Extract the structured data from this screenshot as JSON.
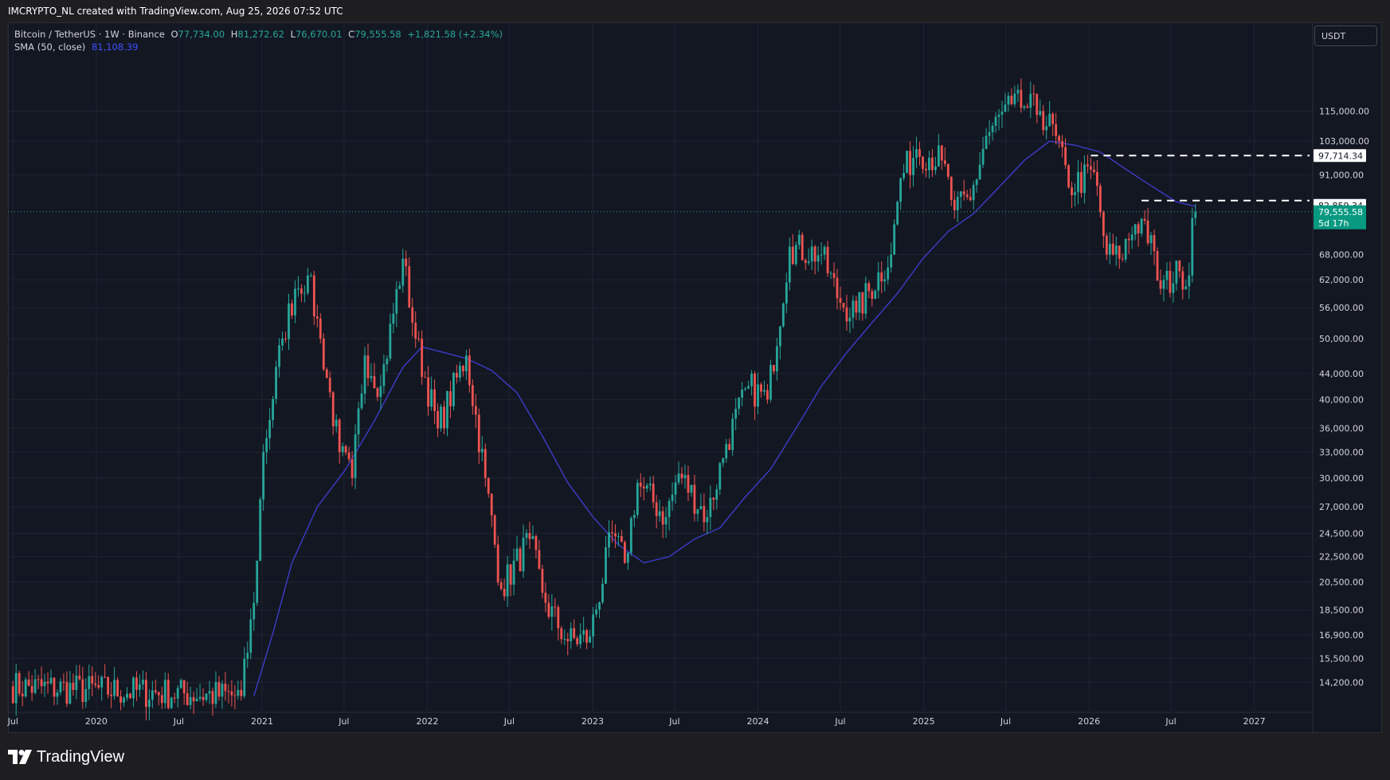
{
  "header": {
    "title": "IMCRYPTO_NL created with TradingView.com, Aug 25, 2026 07:52 UTC"
  },
  "legend": {
    "symbol": "Bitcoin / TetherUS · 1W · Binance",
    "open_label": "O",
    "open": "77,734.00",
    "high_label": "H",
    "high": "81,272.62",
    "low_label": "L",
    "low": "76,670.01",
    "close_label": "C",
    "close": "79,555.58",
    "change": "+1,821.58 (+2.34%)",
    "sma_label": "SMA (50, close)",
    "sma_value": "81,108.39"
  },
  "currency_button": "USDT",
  "footer": {
    "brand": "TradingView"
  },
  "colors": {
    "up": "#26a69a",
    "down": "#ef5350",
    "sma": "#3f3fd8",
    "background": "#131722",
    "grid": "#1f2433",
    "sma_label_bg": "#2962ff",
    "price_label_bg": "#089981"
  },
  "chart_data": {
    "type": "candlestick",
    "scale": "log",
    "ylim": [
      12800,
      145000
    ],
    "xlim": [
      "2019-06-20",
      "2027-05-10"
    ],
    "grid": true,
    "y_ticks": [
      {
        "label": "115,000.00",
        "value": 115000
      },
      {
        "label": "103,000.00",
        "value": 103000
      },
      {
        "label": "91,000.00",
        "value": 91000
      },
      {
        "label": "68,000.00",
        "value": 68000
      },
      {
        "label": "62,000.00",
        "value": 62000
      },
      {
        "label": "56,000.00",
        "value": 56000
      },
      {
        "label": "50,000.00",
        "value": 50000
      },
      {
        "label": "44,000.00",
        "value": 44000
      },
      {
        "label": "40,000.00",
        "value": 40000
      },
      {
        "label": "36,000.00",
        "value": 36000
      },
      {
        "label": "33,000.00",
        "value": 33000
      },
      {
        "label": "30,000.00",
        "value": 30000
      },
      {
        "label": "27,000.00",
        "value": 27000
      },
      {
        "label": "24,500.00",
        "value": 24500
      },
      {
        "label": "22,500.00",
        "value": 22500
      },
      {
        "label": "20,500.00",
        "value": 20500
      },
      {
        "label": "18,500.00",
        "value": 18500
      },
      {
        "label": "16,900.00",
        "value": 16900
      },
      {
        "label": "15,500.00",
        "value": 15500
      },
      {
        "label": "14,200.00",
        "value": 14200
      }
    ],
    "x_ticks": [
      {
        "label": "Jul",
        "date": "2019-07-01"
      },
      {
        "label": "2020",
        "date": "2020-01-01"
      },
      {
        "label": "Jul",
        "date": "2020-07-01"
      },
      {
        "label": "2021",
        "date": "2021-01-01"
      },
      {
        "label": "Jul",
        "date": "2021-07-01"
      },
      {
        "label": "2022",
        "date": "2022-01-01"
      },
      {
        "label": "Jul",
        "date": "2022-07-01"
      },
      {
        "label": "2023",
        "date": "2023-01-01"
      },
      {
        "label": "Jul",
        "date": "2023-07-01"
      },
      {
        "label": "2024",
        "date": "2024-01-01"
      },
      {
        "label": "Jul",
        "date": "2024-07-01"
      },
      {
        "label": "2025",
        "date": "2025-01-01"
      },
      {
        "label": "Jul",
        "date": "2025-07-01"
      },
      {
        "label": "2026",
        "date": "2026-01-01"
      },
      {
        "label": "Jul",
        "date": "2026-07-01"
      },
      {
        "label": "2027",
        "date": "2027-01-01"
      }
    ],
    "series": [
      {
        "type": "candlestick",
        "anchors": [
          [
            "2019-06-24",
            14000
          ],
          [
            "2020-11-16",
            13500
          ],
          [
            "2020-12-14",
            19000
          ],
          [
            "2021-01-04",
            33000
          ],
          [
            "2021-02-15",
            50000
          ],
          [
            "2021-03-15",
            60000
          ],
          [
            "2021-04-12",
            63000
          ],
          [
            "2021-05-10",
            50000
          ],
          [
            "2021-06-21",
            33000
          ],
          [
            "2021-07-19",
            30000
          ],
          [
            "2021-08-16",
            47000
          ],
          [
            "2021-09-20",
            42000
          ],
          [
            "2021-11-08",
            67000
          ],
          [
            "2021-12-06",
            50000
          ],
          [
            "2022-01-24",
            36000
          ],
          [
            "2022-03-28",
            47000
          ],
          [
            "2022-05-09",
            30000
          ],
          [
            "2022-06-13",
            20000
          ],
          [
            "2022-08-15",
            24000
          ],
          [
            "2022-09-19",
            19000
          ],
          [
            "2022-11-07",
            16500
          ],
          [
            "2022-12-26",
            16800
          ],
          [
            "2023-02-13",
            24500
          ],
          [
            "2023-03-13",
            22000
          ],
          [
            "2023-04-10",
            29500
          ],
          [
            "2023-06-12",
            26000
          ],
          [
            "2023-07-10",
            30500
          ],
          [
            "2023-09-11",
            26000
          ],
          [
            "2023-10-23",
            34000
          ],
          [
            "2023-12-11",
            42000
          ],
          [
            "2024-01-22",
            40000
          ],
          [
            "2024-03-11",
            70000
          ],
          [
            "2024-05-20",
            68000
          ],
          [
            "2024-07-01",
            57000
          ],
          [
            "2024-08-05",
            55000
          ],
          [
            "2024-10-21",
            68000
          ],
          [
            "2024-11-11",
            90000
          ],
          [
            "2024-12-16",
            100000
          ],
          [
            "2025-02-10",
            96000
          ],
          [
            "2025-03-10",
            80000
          ],
          [
            "2025-04-14",
            83000
          ],
          [
            "2025-05-19",
            105000
          ],
          [
            "2025-07-14",
            118000
          ],
          [
            "2025-08-11",
            117000
          ],
          [
            "2025-09-15",
            115000
          ],
          [
            "2025-10-20",
            105000
          ],
          [
            "2025-11-17",
            87000
          ],
          [
            "2026-01-12",
            92000
          ],
          [
            "2026-02-09",
            68000
          ],
          [
            "2026-03-09",
            67000
          ],
          [
            "2026-04-13",
            76000
          ],
          [
            "2026-05-04",
            77000
          ],
          [
            "2026-06-08",
            60000
          ],
          [
            "2026-07-20",
            64000
          ],
          [
            "2026-08-10",
            63000
          ],
          [
            "2026-08-17",
            77734
          ],
          [
            "2026-08-24",
            79555.58
          ]
        ]
      },
      {
        "type": "line",
        "name": "SMA (50, close)",
        "points": [
          [
            "2020-12-14",
            13500
          ],
          [
            "2021-01-25",
            17000
          ],
          [
            "2021-03-08",
            22000
          ],
          [
            "2021-05-03",
            27000
          ],
          [
            "2021-07-05",
            31000
          ],
          [
            "2021-09-06",
            37000
          ],
          [
            "2021-11-08",
            45000
          ],
          [
            "2021-12-20",
            48500
          ],
          [
            "2022-02-07",
            47500
          ],
          [
            "2022-03-28",
            46500
          ],
          [
            "2022-05-23",
            44500
          ],
          [
            "2022-07-18",
            41000
          ],
          [
            "2022-09-12",
            35000
          ],
          [
            "2022-11-07",
            29500
          ],
          [
            "2023-01-02",
            26000
          ],
          [
            "2023-02-27",
            23500
          ],
          [
            "2023-04-24",
            22000
          ],
          [
            "2023-06-19",
            22500
          ],
          [
            "2023-08-14",
            24000
          ],
          [
            "2023-10-09",
            25000
          ],
          [
            "2023-12-04",
            28000
          ],
          [
            "2024-01-29",
            31000
          ],
          [
            "2024-03-25",
            36000
          ],
          [
            "2024-05-20",
            42000
          ],
          [
            "2024-07-15",
            47500
          ],
          [
            "2024-09-09",
            53000
          ],
          [
            "2024-11-04",
            59000
          ],
          [
            "2024-12-30",
            67000
          ],
          [
            "2025-02-24",
            74000
          ],
          [
            "2025-04-21",
            79000
          ],
          [
            "2025-06-16",
            87000
          ],
          [
            "2025-08-11",
            96000
          ],
          [
            "2025-10-06",
            103000
          ],
          [
            "2025-12-01",
            101500
          ],
          [
            "2026-01-26",
            99000
          ],
          [
            "2026-03-23",
            93000
          ],
          [
            "2026-05-18",
            87500
          ],
          [
            "2026-07-13",
            82500
          ],
          [
            "2026-08-24",
            81108.39
          ]
        ]
      }
    ],
    "horizontal_lines": [
      {
        "value": 97714.34,
        "label": "97,714.34",
        "from": "2026-01-05"
      },
      {
        "value": 82859.34,
        "label": "82,859.34",
        "from": "2026-04-27"
      }
    ],
    "price_labels": [
      {
        "text": "97,714.34",
        "value": 97714.34
      },
      {
        "text": "82,859.34",
        "value": 82859.34
      },
      {
        "text": "81,108.39",
        "value": 81108.39
      },
      {
        "text": "79,555.58",
        "value": 79555.58
      },
      {
        "text": "5d 17h",
        "value": 79555.58
      }
    ],
    "last_price": 79555.58
  }
}
